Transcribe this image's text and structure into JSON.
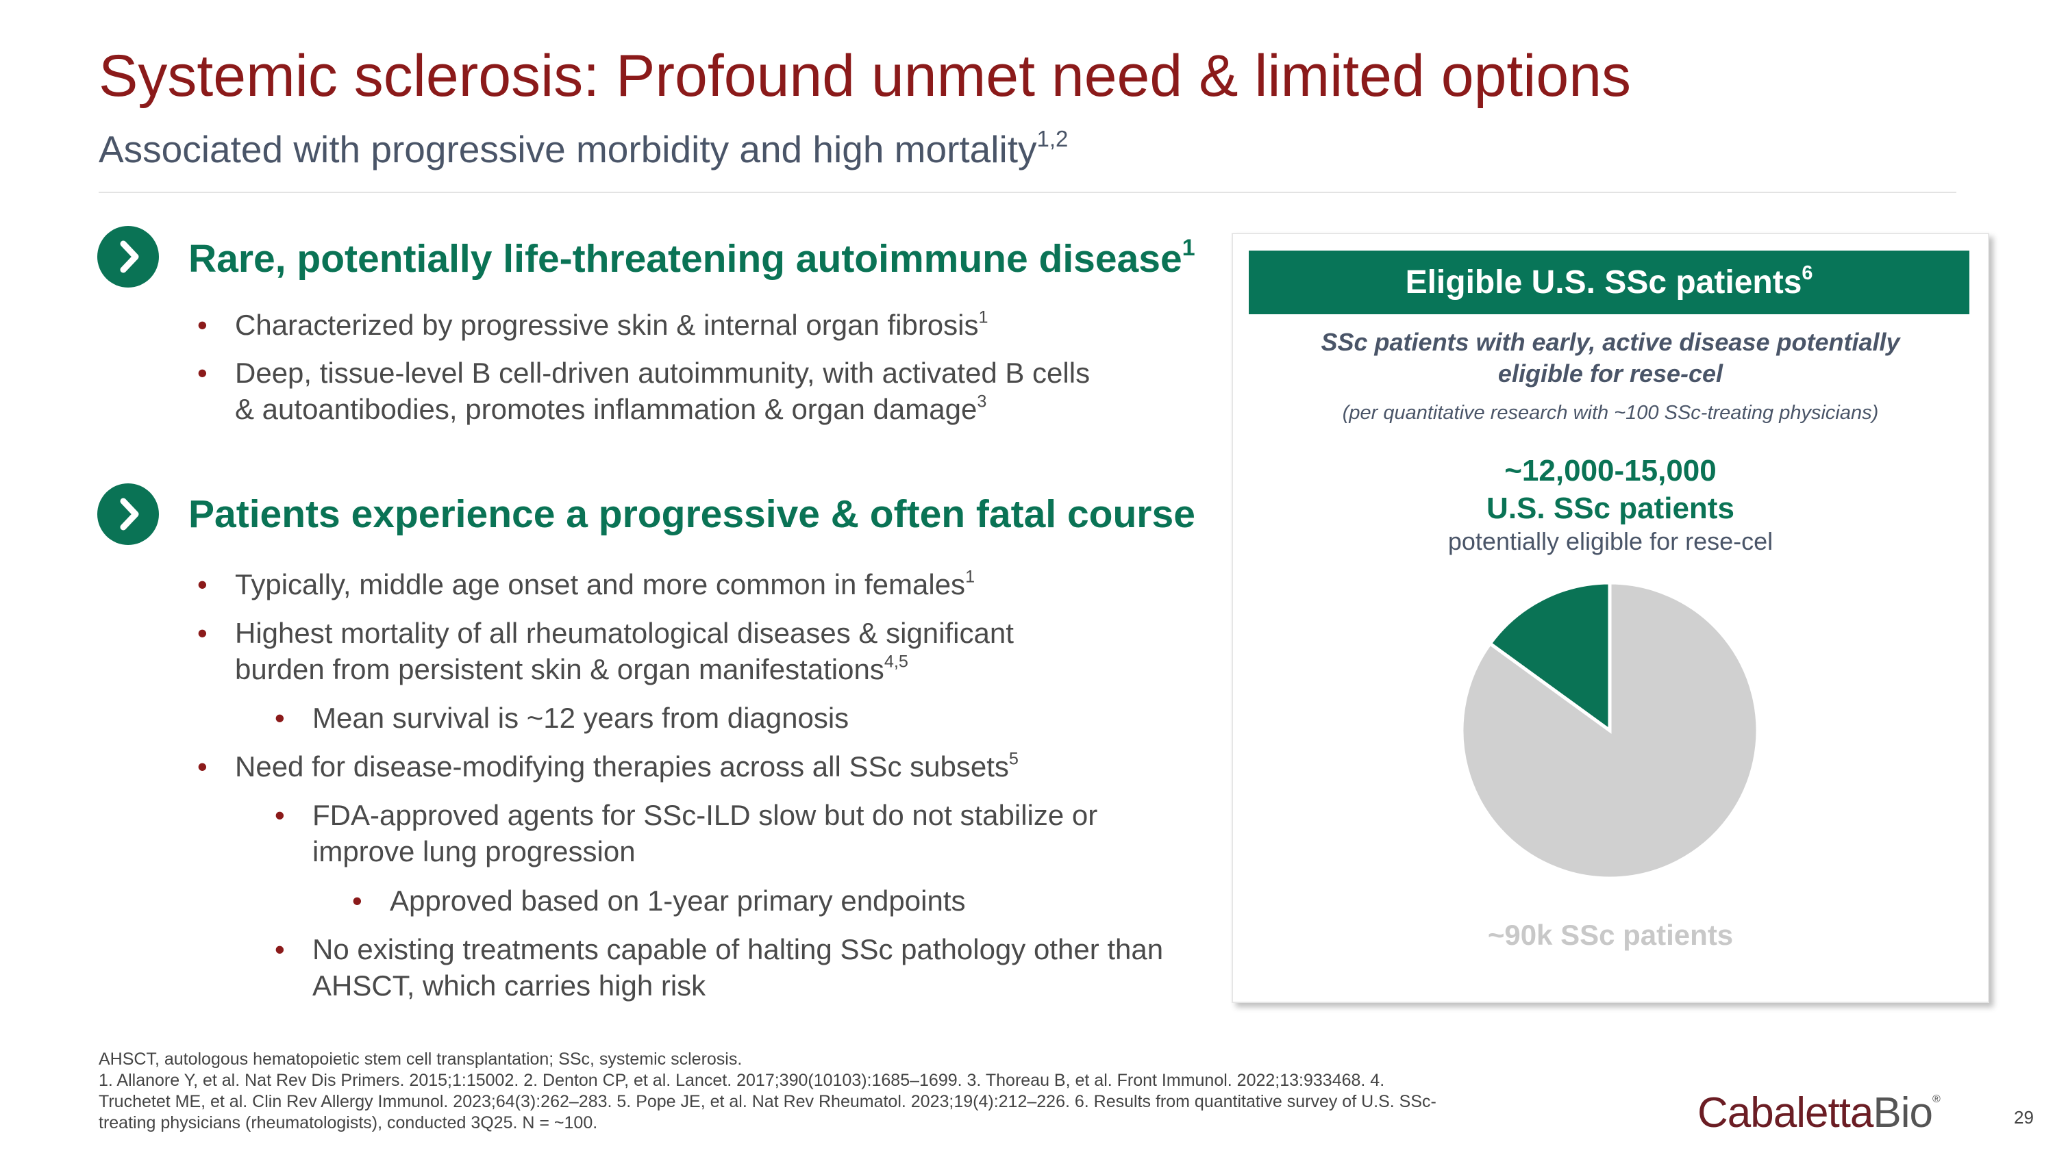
{
  "header": {
    "title": "Systemic sclerosis: Profound unmet need & limited options",
    "subtitle": "Associated with progressive morbidity and high mortality",
    "subtitle_sup": "1,2"
  },
  "sections": [
    {
      "heading": "Rare, potentially life-threatening autoimmune disease",
      "heading_sup": "1",
      "icon": "chevron-right-icon",
      "bullets": [
        {
          "text": "Characterized by progressive skin & internal organ fibrosis",
          "sup": "1",
          "level": 1
        },
        {
          "text": "Deep, tissue-level B cell-driven autoimmunity, with activated B cells & autoantibodies, promotes inflammation & organ damage",
          "sup": "3",
          "level": 1
        }
      ]
    },
    {
      "heading": "Patients experience a progressive & often fatal course",
      "heading_sup": "",
      "icon": "chevron-right-icon",
      "bullets": [
        {
          "text": "Typically, middle age onset and more common in females",
          "sup": "1",
          "level": 1
        },
        {
          "text": "Highest mortality of all rheumatological diseases & significant burden from persistent skin & organ manifestations",
          "sup": "4,5",
          "level": 1
        },
        {
          "text": "Mean survival is ~12 years from diagnosis",
          "sup": "",
          "level": 2
        },
        {
          "text": "Need for disease-modifying therapies across all SSc subsets",
          "sup": "5",
          "level": 1
        },
        {
          "text": "FDA-approved agents for SSc-ILD slow but do not stabilize or improve lung progression",
          "sup": "",
          "level": 2
        },
        {
          "text": "Approved based on 1-year primary endpoints",
          "sup": "",
          "level": 3
        },
        {
          "text": "No existing treatments capable of halting SSc pathology other than AHSCT, which carries high risk",
          "sup": "",
          "level": 2
        }
      ]
    }
  ],
  "panel": {
    "title": "Eligible U.S. SSc patients",
    "title_sup": "6",
    "description": "SSc patients with early, active disease potentially eligible for rese-cel",
    "note": "(per quantitative research with ~100 SSc-treating physicians)",
    "number": "~12,000-15,000",
    "number_label": "U.S. SSc patients",
    "number_sublabel": "potentially eligible for rese-cel"
  },
  "chart_data": {
    "type": "pie",
    "slices": [
      {
        "label": "~12,000-15,000 U.S. SSc patients potentially eligible for rese-cel",
        "value": 13500,
        "color": "#0a7355"
      },
      {
        "label": "~90k SSc patients",
        "value": 76500,
        "color": "#d0d0d0"
      }
    ],
    "total_label": "~90k SSc patients",
    "total": 90000
  },
  "footer": {
    "abbrev": "AHSCT, autologous hematopoietic stem cell transplantation; SSc, systemic sclerosis.",
    "refs": "1. Allanore Y, et al. Nat Rev Dis Primers. 2015;1:15002. 2. Denton CP, et al. Lancet. 2017;390(10103):1685–1699. 3. Thoreau B, et al. Front Immunol. 2022;13:933468. 4. Truchetet ME, et al. Clin Rev Allergy Immunol. 2023;64(3):262–283. 5. Pope JE, et al. Nat Rev Rheumatol. 2023;19(4):212–226. 6. Results from quantitative survey of U.S. SSc-treating physicians (rheumatologists), conducted 3Q25. N = ~100."
  },
  "logo": {
    "text1": "Cabaletta",
    "text2": "Bio",
    "mark": "®"
  },
  "page_number": "29",
  "colors": {
    "title": "#8b1a1a",
    "accent": "#0a7355",
    "pie_rest": "#d0d0d0"
  }
}
